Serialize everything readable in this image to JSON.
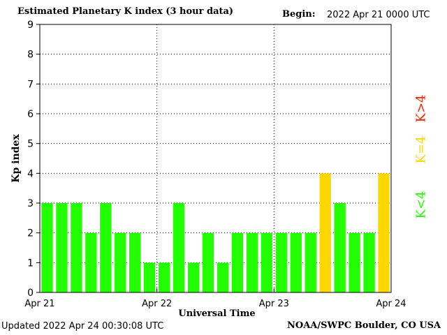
{
  "header": {
    "title": "Estimated Planetary K index (3 hour data)",
    "begin_label": "Begin:",
    "begin_value": "2022 Apr 21 0000 UTC"
  },
  "footer": {
    "updated": "Updated 2022 Apr 24 00:30:08 UTC",
    "source": "NOAA/SWPC Boulder, CO USA"
  },
  "legend": {
    "low": "K<4",
    "equal": "K=4",
    "high": "K>4"
  },
  "colors": {
    "low": "#22ff00",
    "equal": "#ffd700",
    "high": "#ff2200",
    "axis": "#000000",
    "grid": "#000000",
    "background": "#ffffff"
  },
  "chart_data": {
    "type": "bar",
    "title": "Estimated Planetary K index (3 hour data)",
    "xlabel": "Universal Time",
    "ylabel": "Kp index",
    "ylim": [
      0,
      9
    ],
    "yticks": [
      "0",
      "1",
      "2",
      "3",
      "4",
      "5",
      "6",
      "7",
      "8",
      "9"
    ],
    "xticks": [
      "Apr 21",
      "Apr 22",
      "Apr 23",
      "Apr 24"
    ],
    "grid": "dotted, at each day boundary and each integer Kp level",
    "bars_per_day": 8,
    "values": [
      3,
      3,
      3,
      2,
      3,
      2,
      2,
      1,
      1,
      3,
      1,
      2,
      1,
      2,
      2,
      2,
      2,
      2,
      2,
      4,
      3,
      2,
      2,
      4
    ]
  }
}
